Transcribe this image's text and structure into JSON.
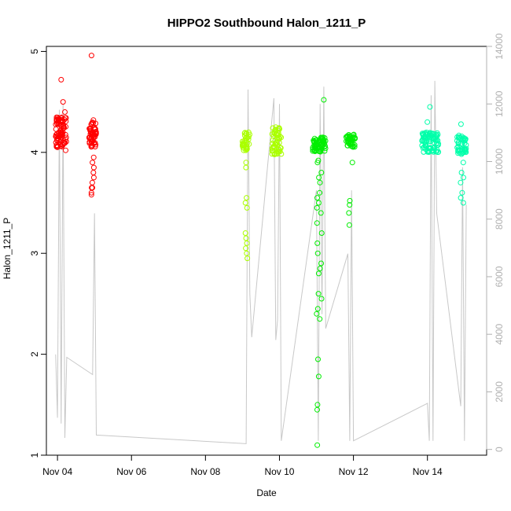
{
  "chart_data": {
    "type": "scatter",
    "title": "HIPPO2 Southbound Halon_1211_P",
    "xlabel": "Date",
    "ylabel": "Halon_1211_P",
    "x_unit": "days since Nov 04",
    "xlim": [
      -0.3,
      11.6
    ],
    "ylim": [
      1.0,
      5.05
    ],
    "y_ticks": [
      1,
      2,
      3,
      4,
      5
    ],
    "x_ticks": [
      {
        "label": "Nov 04",
        "value": 0
      },
      {
        "label": "Nov 06",
        "value": 2
      },
      {
        "label": "Nov 08",
        "value": 4
      },
      {
        "label": "Nov 10",
        "value": 6
      },
      {
        "label": "Nov 12",
        "value": 8
      },
      {
        "label": "Nov 14",
        "value": 10
      }
    ],
    "y2lim": [
      -200,
      14000
    ],
    "y2_ticks": [
      0,
      2000,
      4000,
      6000,
      8000,
      10000,
      12000,
      14000
    ],
    "grid": false,
    "colors": {
      "points_a": "#ff0000",
      "points_b": "#aaff00",
      "points_c": "#00ee00",
      "points_d": "#00ffaa",
      "altitude_line": "#c8c8c8"
    },
    "flights": [
      {
        "x0": -0.05,
        "x1": 0.25,
        "main": [
          4.05,
          4.35
        ],
        "lows": [],
        "color": "#ff0000",
        "n": 90
      },
      {
        "x0": 0.85,
        "x1": 1.05,
        "main": [
          4.05,
          4.3
        ],
        "lows": [
          3.6,
          3.65,
          3.7,
          3.75,
          3.8,
          3.85,
          3.9,
          3.95,
          3.65,
          3.58
        ],
        "color": "#ff0000",
        "n": 55
      },
      {
        "x0": 5.0,
        "x1": 5.2,
        "main": [
          4.02,
          4.2
        ],
        "lows": [
          2.95,
          3.0,
          3.05,
          3.1,
          3.15,
          3.2,
          3.45,
          3.5,
          3.55,
          3.85,
          3.9
        ],
        "color": "#aaff00",
        "n": 40
      },
      {
        "x0": 5.8,
        "x1": 6.05,
        "main": [
          3.98,
          4.25
        ],
        "lows": [],
        "color": "#aaff00",
        "n": 55
      },
      {
        "x0": 6.9,
        "x1": 7.25,
        "main": [
          4.0,
          4.15
        ],
        "lows": [
          1.1,
          1.45,
          1.5,
          1.78,
          1.95,
          2.35,
          2.4,
          2.45,
          2.55,
          2.6,
          2.8,
          2.85,
          2.9,
          3.0,
          3.1,
          3.2,
          3.3,
          3.4,
          3.45,
          3.5,
          3.55,
          3.6,
          3.7,
          3.75,
          3.8,
          3.9
        ],
        "color": "#00ee00",
        "n": 60
      },
      {
        "x0": 7.8,
        "x1": 8.05,
        "main": [
          4.05,
          4.18
        ],
        "lows": [
          3.28,
          3.4,
          3.48,
          3.52,
          3.9
        ],
        "color": "#00ee00",
        "n": 45
      },
      {
        "x0": 9.85,
        "x1": 10.3,
        "main": [
          4.0,
          4.2
        ],
        "lows": [
          4.3,
          4.45
        ],
        "color": "#00ffaa",
        "n": 80
      },
      {
        "x0": 10.8,
        "x1": 11.05,
        "main": [
          3.98,
          4.18
        ],
        "lows": [
          3.5,
          3.55,
          3.6,
          3.7,
          3.75,
          3.8,
          3.9,
          4.28
        ],
        "color": "#00ffaa",
        "n": 45
      }
    ],
    "outliers": [
      {
        "x": 0.1,
        "y": 4.72,
        "color": "#ff0000"
      },
      {
        "x": 0.15,
        "y": 4.5,
        "color": "#ff0000"
      },
      {
        "x": 0.2,
        "y": 4.4,
        "color": "#ff0000"
      },
      {
        "x": 0.92,
        "y": 4.96,
        "color": "#ff0000"
      },
      {
        "x": 0.97,
        "y": 4.32,
        "color": "#ff0000"
      },
      {
        "x": 0.22,
        "y": 4.02,
        "color": "#ff0000"
      },
      {
        "x": 5.9,
        "y": 4.25,
        "color": "#aaff00"
      },
      {
        "x": 7.2,
        "y": 4.52,
        "color": "#00ee00"
      },
      {
        "x": 7.05,
        "y": 3.92,
        "color": "#00ee00"
      }
    ],
    "altitude_path": [
      [
        -0.05,
        3300
      ],
      [
        0.0,
        1100
      ],
      [
        0.05,
        11800
      ],
      [
        0.1,
        900
      ],
      [
        0.15,
        12000
      ],
      [
        0.2,
        400
      ],
      [
        0.25,
        3200
      ],
      [
        0.95,
        2600
      ],
      [
        1.0,
        8200
      ],
      [
        1.05,
        500
      ],
      [
        5.1,
        200
      ],
      [
        5.15,
        12500
      ],
      [
        5.2,
        5400
      ],
      [
        5.25,
        3900
      ],
      [
        5.85,
        12200
      ],
      [
        5.9,
        3800
      ],
      [
        5.95,
        4500
      ],
      [
        6.0,
        12000
      ],
      [
        6.05,
        300
      ],
      [
        7.0,
        9000
      ],
      [
        7.05,
        300
      ],
      [
        7.1,
        12000
      ],
      [
        7.15,
        4700
      ],
      [
        7.2,
        12600
      ],
      [
        7.25,
        4200
      ],
      [
        7.85,
        6800
      ],
      [
        7.9,
        300
      ],
      [
        7.95,
        9000
      ],
      [
        8.0,
        300
      ],
      [
        10.0,
        1600
      ],
      [
        10.05,
        300
      ],
      [
        10.1,
        12300
      ],
      [
        10.15,
        300
      ],
      [
        10.2,
        12800
      ],
      [
        10.25,
        8200
      ],
      [
        10.9,
        1500
      ],
      [
        10.95,
        9800
      ],
      [
        11.0,
        300
      ],
      [
        11.05,
        8500
      ]
    ],
    "altitude_ticks_label": ""
  }
}
